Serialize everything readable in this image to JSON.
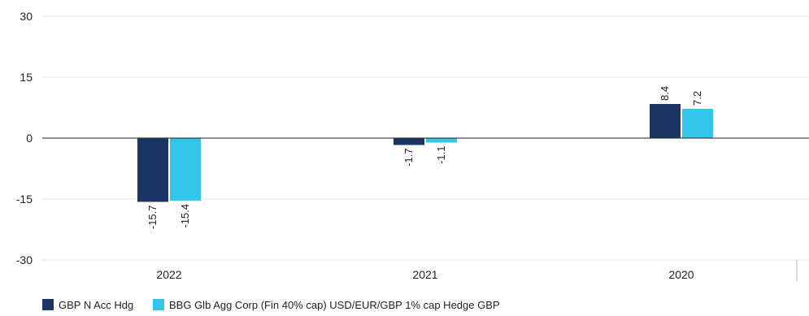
{
  "chart_data": {
    "type": "bar",
    "title": "",
    "xlabel": "",
    "ylabel": "",
    "categories": [
      "2022",
      "2021",
      "2020"
    ],
    "series": [
      {
        "name": "GBP N Acc Hdg",
        "values": [
          -15.7,
          -1.7,
          8.4
        ],
        "color": "#1b3563"
      },
      {
        "name": "BBG Glb Agg Corp (Fin 40% cap) USD/EUR/GBP 1% cap Hedge GBP",
        "values": [
          -15.4,
          -1.1,
          7.2
        ],
        "color": "#33c6ea"
      }
    ],
    "ylim": [
      -30,
      30
    ],
    "yticks": [
      30,
      15,
      0,
      -15,
      -30
    ],
    "grid": true,
    "legend_position": "bottom-left",
    "data_labels": true,
    "data_label_orientation": "vertical"
  }
}
